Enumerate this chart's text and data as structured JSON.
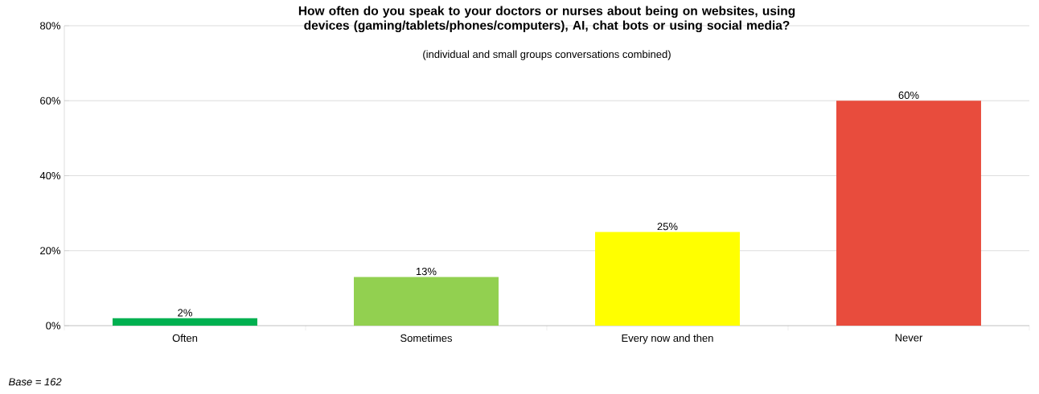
{
  "chart_data": {
    "type": "bar",
    "title": "How often do you speak to your doctors or nurses about being on websites, using devices (gaming/tablets/phones/computers), AI, chat bots or using social media?",
    "subtitle": "(individual and small groups conversations combined)",
    "categories": [
      "Often",
      "Sometimes",
      "Every now and then",
      "Never"
    ],
    "values": [
      2,
      13,
      25,
      60
    ],
    "colors": [
      "#00b050",
      "#92d050",
      "#ffff00",
      "#e84c3d"
    ],
    "value_labels": [
      "2%",
      "13%",
      "25%",
      "60%"
    ],
    "ylim": [
      0,
      80
    ],
    "yticks": [
      {
        "value": 0,
        "label": "0%"
      },
      {
        "value": 20,
        "label": "20%"
      },
      {
        "value": 40,
        "label": "40%"
      },
      {
        "value": 60,
        "label": "60%"
      },
      {
        "value": 80,
        "label": "80%"
      }
    ],
    "grid": "y",
    "annotations": [
      "Base = 162"
    ]
  }
}
